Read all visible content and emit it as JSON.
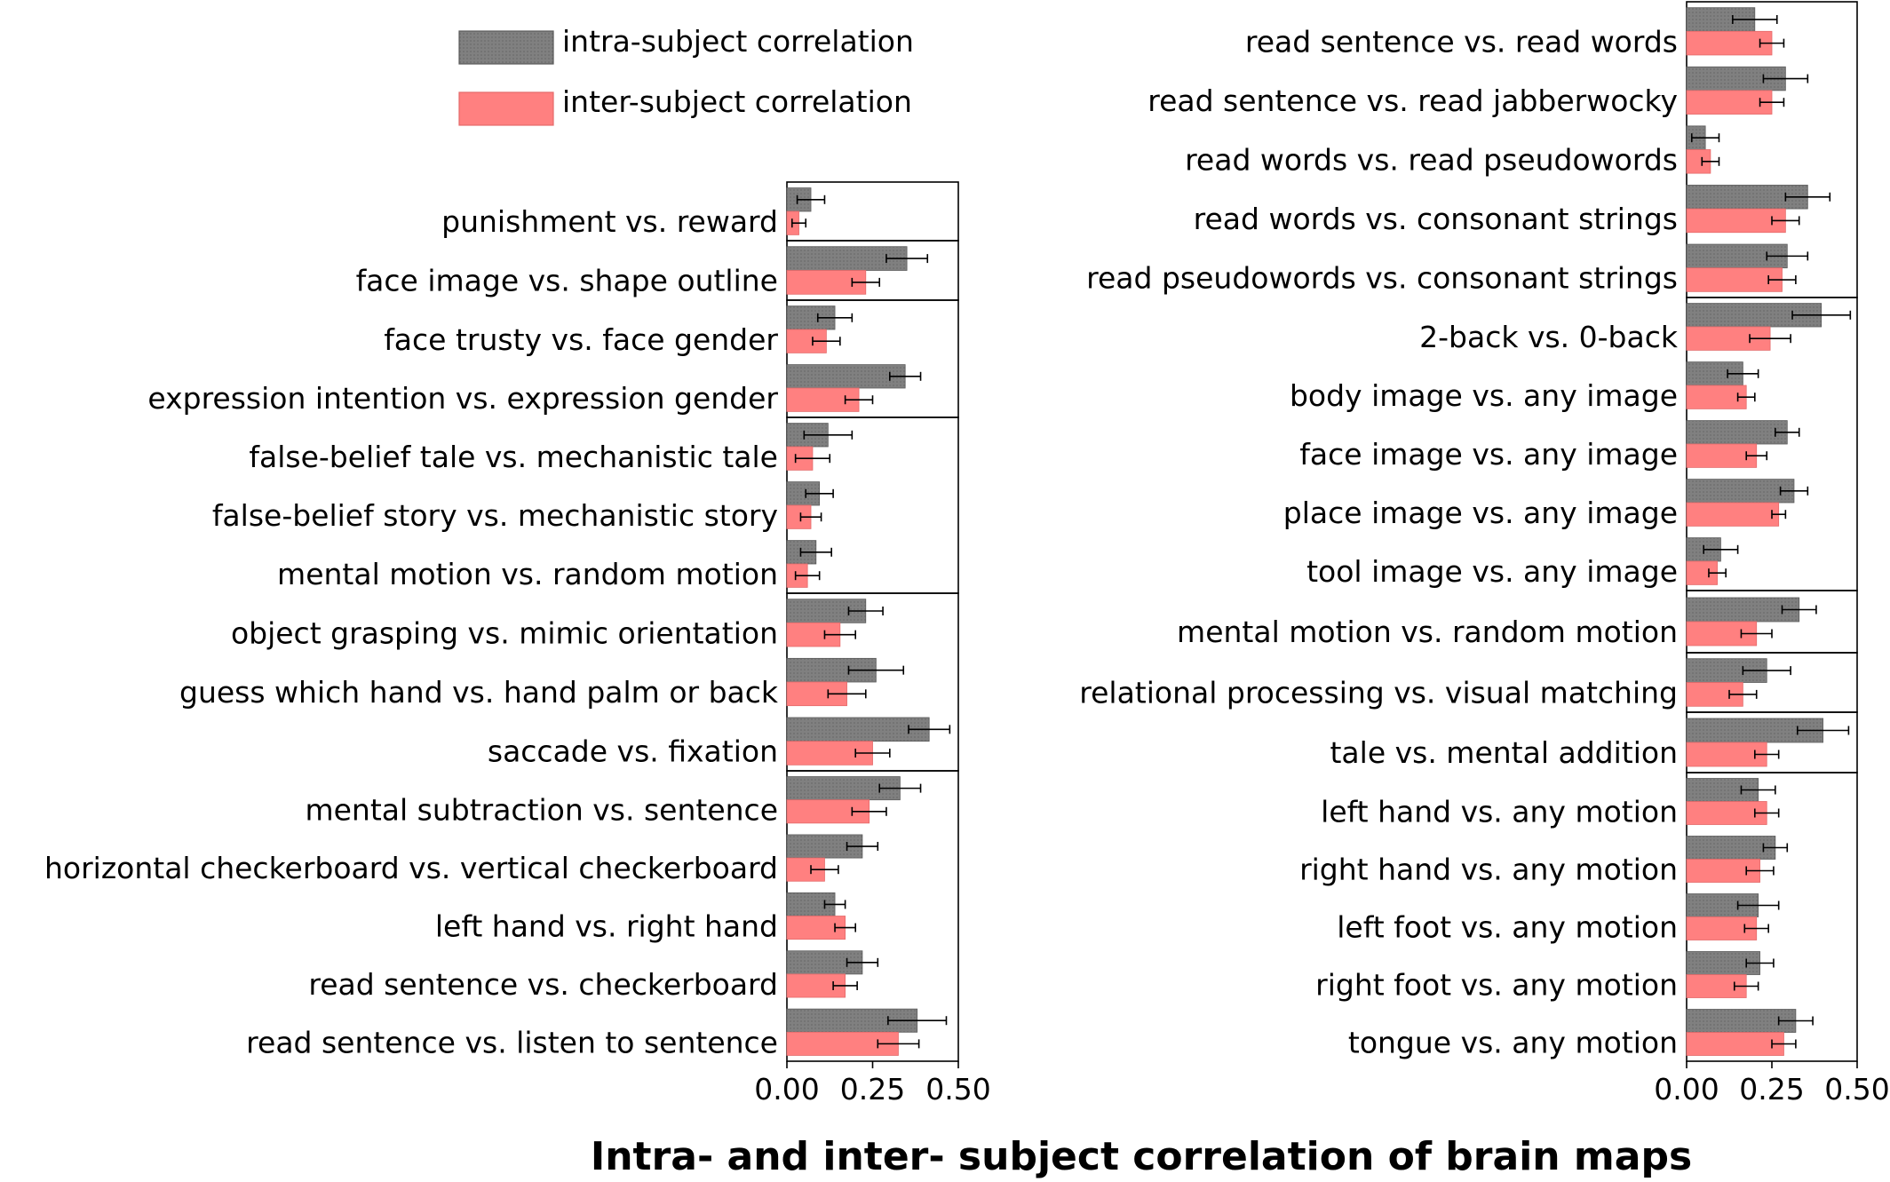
{
  "title": "Intra- and inter- subject correlation of brain maps",
  "chart_data": {
    "type": "bar",
    "orientation": "horizontal",
    "title": "Intra- and inter- subject correlation of brain maps",
    "legend": {
      "placement": "top-left",
      "entries": [
        {
          "name": "intra-subject correlation",
          "color": "#808080",
          "hatch": "dotted"
        },
        {
          "name": "inter-subject correlation",
          "color": "#ff8080"
        }
      ]
    },
    "xlim": [
      0,
      0.5
    ],
    "xticks": [
      "0.00",
      "0.25",
      "0.50"
    ],
    "colors": {
      "intra": "#808080",
      "inter": "#ff8080",
      "intra_edge": "#5a5a5a",
      "inter_edge": "#e46a6a"
    },
    "panels": [
      {
        "name": "left",
        "groups": [
          [
            {
              "label": "punishment vs. reward",
              "intra": 0.07,
              "intra_err": 0.04,
              "inter": 0.035,
              "inter_err": 0.02
            }
          ],
          [
            {
              "label": "face image vs. shape outline",
              "intra": 0.35,
              "intra_err": 0.06,
              "inter": 0.23,
              "inter_err": 0.04
            }
          ],
          [
            {
              "label": "face trusty vs. face gender",
              "intra": 0.14,
              "intra_err": 0.05,
              "inter": 0.115,
              "inter_err": 0.04
            },
            {
              "label": "expression intention vs. expression gender",
              "intra": 0.345,
              "intra_err": 0.045,
              "inter": 0.21,
              "inter_err": 0.04
            }
          ],
          [
            {
              "label": "false-belief tale vs. mechanistic tale",
              "intra": 0.12,
              "intra_err": 0.07,
              "inter": 0.075,
              "inter_err": 0.05
            },
            {
              "label": "false-belief story vs. mechanistic story",
              "intra": 0.095,
              "intra_err": 0.04,
              "inter": 0.07,
              "inter_err": 0.03
            },
            {
              "label": "mental motion vs. random motion",
              "intra": 0.085,
              "intra_err": 0.045,
              "inter": 0.06,
              "inter_err": 0.035
            }
          ],
          [
            {
              "label": "object grasping vs. mimic orientation",
              "intra": 0.23,
              "intra_err": 0.05,
              "inter": 0.155,
              "inter_err": 0.045
            },
            {
              "label": "guess which hand vs. hand palm or back",
              "intra": 0.26,
              "intra_err": 0.08,
              "inter": 0.175,
              "inter_err": 0.055
            },
            {
              "label": "saccade vs. fixation",
              "intra": 0.415,
              "intra_err": 0.06,
              "inter": 0.25,
              "inter_err": 0.05
            }
          ],
          [
            {
              "label": "mental subtraction vs. sentence",
              "intra": 0.33,
              "intra_err": 0.06,
              "inter": 0.24,
              "inter_err": 0.05
            },
            {
              "label": "horizontal checkerboard vs. vertical checkerboard",
              "intra": 0.22,
              "intra_err": 0.045,
              "inter": 0.11,
              "inter_err": 0.04
            },
            {
              "label": "left hand vs. right hand",
              "intra": 0.14,
              "intra_err": 0.03,
              "inter": 0.17,
              "inter_err": 0.03
            },
            {
              "label": "read sentence vs. checkerboard",
              "intra": 0.22,
              "intra_err": 0.045,
              "inter": 0.17,
              "inter_err": 0.035
            },
            {
              "label": "read sentence vs. listen to sentence",
              "intra": 0.38,
              "intra_err": 0.085,
              "inter": 0.325,
              "inter_err": 0.06
            }
          ]
        ]
      },
      {
        "name": "right",
        "groups": [
          [
            {
              "label": "read sentence vs. read words",
              "intra": 0.2,
              "intra_err": 0.065,
              "inter": 0.25,
              "inter_err": 0.035
            },
            {
              "label": "read sentence vs. read jabberwocky",
              "intra": 0.29,
              "intra_err": 0.065,
              "inter": 0.25,
              "inter_err": 0.035
            },
            {
              "label": "read words vs. read pseudowords",
              "intra": 0.055,
              "intra_err": 0.04,
              "inter": 0.07,
              "inter_err": 0.025
            },
            {
              "label": "read words vs. consonant strings",
              "intra": 0.355,
              "intra_err": 0.065,
              "inter": 0.29,
              "inter_err": 0.04
            },
            {
              "label": "read pseudowords vs. consonant strings",
              "intra": 0.295,
              "intra_err": 0.06,
              "inter": 0.28,
              "inter_err": 0.04
            }
          ],
          [
            {
              "label": "2-back vs. 0-back",
              "intra": 0.395,
              "intra_err": 0.085,
              "inter": 0.245,
              "inter_err": 0.06
            },
            {
              "label": "body image vs. any image",
              "intra": 0.165,
              "intra_err": 0.045,
              "inter": 0.175,
              "inter_err": 0.025
            },
            {
              "label": "face image vs. any image",
              "intra": 0.295,
              "intra_err": 0.035,
              "inter": 0.205,
              "inter_err": 0.03
            },
            {
              "label": "place image vs. any image",
              "intra": 0.315,
              "intra_err": 0.04,
              "inter": 0.27,
              "inter_err": 0.02
            },
            {
              "label": "tool image vs. any image",
              "intra": 0.1,
              "intra_err": 0.05,
              "inter": 0.09,
              "inter_err": 0.025
            }
          ],
          [
            {
              "label": "mental motion vs. random motion",
              "intra": 0.33,
              "intra_err": 0.05,
              "inter": 0.205,
              "inter_err": 0.045
            }
          ],
          [
            {
              "label": "relational processing vs. visual matching",
              "intra": 0.235,
              "intra_err": 0.07,
              "inter": 0.165,
              "inter_err": 0.04
            }
          ],
          [
            {
              "label": "tale vs. mental addition",
              "intra": 0.4,
              "intra_err": 0.075,
              "inter": 0.235,
              "inter_err": 0.035
            }
          ],
          [
            {
              "label": "left hand vs. any motion",
              "intra": 0.21,
              "intra_err": 0.05,
              "inter": 0.235,
              "inter_err": 0.035
            },
            {
              "label": "right hand vs. any motion",
              "intra": 0.26,
              "intra_err": 0.035,
              "inter": 0.215,
              "inter_err": 0.04
            },
            {
              "label": "left foot vs. any motion",
              "intra": 0.21,
              "intra_err": 0.06,
              "inter": 0.205,
              "inter_err": 0.035
            },
            {
              "label": "right foot vs. any motion",
              "intra": 0.215,
              "intra_err": 0.04,
              "inter": 0.175,
              "inter_err": 0.035
            },
            {
              "label": "tongue vs. any motion",
              "intra": 0.32,
              "intra_err": 0.05,
              "inter": 0.285,
              "inter_err": 0.035
            }
          ]
        ]
      }
    ]
  }
}
